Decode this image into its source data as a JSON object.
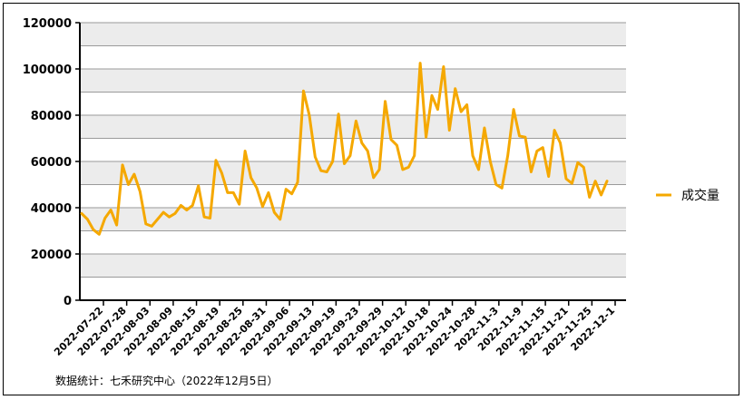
{
  "chart_data": {
    "type": "line",
    "title": "",
    "xlabel": "",
    "ylabel": "",
    "ylim": [
      0,
      120000
    ],
    "yticks": [
      0,
      20000,
      40000,
      60000,
      80000,
      100000,
      120000
    ],
    "grid": "horizontal bands",
    "legend_position": "right",
    "series_color": "#F5A800",
    "xtick_labels": [
      "2022-07-22",
      "2022-07-28",
      "2022-08-03",
      "2022-08-09",
      "2022-08-15",
      "2022-08-19",
      "2022-08-25",
      "2022-08-31",
      "2022-09-06",
      "2022-09-13",
      "2022-09-19",
      "2022-09-23",
      "2022-09-29",
      "2022-10-12",
      "2022-10-18",
      "2022-10-24",
      "2022-10-28",
      "2022-11-3",
      "2022-11-9",
      "2022-11-15",
      "2022-11-21",
      "2022-11-25",
      "2022-12-1"
    ],
    "series": [
      {
        "name": "成交量",
        "values": [
          37500,
          35000,
          30500,
          28500,
          35500,
          39000,
          32500,
          58500,
          50000,
          54500,
          47000,
          33000,
          32000,
          35000,
          38000,
          36000,
          37500,
          41000,
          39000,
          41000,
          49500,
          36000,
          35500,
          60500,
          55000,
          46500,
          46500,
          41500,
          64500,
          53000,
          48500,
          40500,
          46500,
          38000,
          35000,
          48000,
          46000,
          51000,
          90500,
          80000,
          62000,
          56000,
          55500,
          60000,
          80500,
          59000,
          62500,
          77500,
          68000,
          64500,
          53000,
          56500,
          86000,
          69500,
          67000,
          56500,
          57500,
          62500,
          102500,
          70500,
          88500,
          82500,
          101000,
          73500,
          91500,
          81500,
          84500,
          62500,
          56500,
          74500,
          60000,
          50000,
          48500,
          62500,
          82500,
          71000,
          70500,
          55500,
          64500,
          66000,
          53500,
          73500,
          68000,
          52500,
          50500,
          59500,
          57500,
          44500,
          51500,
          45500,
          51500
        ]
      }
    ],
    "source_note": "数据统计：七禾研究中心（2022年12月5日）"
  }
}
